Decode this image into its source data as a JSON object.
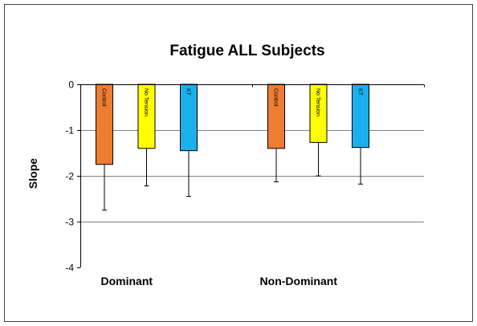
{
  "chart_data": {
    "type": "bar",
    "title": "Fatigue ALL Subjects",
    "xlabel": "",
    "ylabel": "Slope",
    "ylim": [
      -4,
      0
    ],
    "yticks": [
      "0",
      "-1",
      "-2",
      "-3",
      "-4"
    ],
    "grid": true,
    "legend": "none",
    "categories": [
      "Dominant",
      "Non-Dominant"
    ],
    "series": [
      {
        "name": "Control",
        "color": "#ED7D31",
        "values": [
          -1.75,
          -1.4
        ],
        "errors": [
          1.0,
          0.73
        ]
      },
      {
        "name": "No Tension",
        "color": "#FFFF00",
        "values": [
          -1.4,
          -1.27
        ],
        "errors": [
          0.82,
          0.73
        ]
      },
      {
        "name": "KT",
        "color": "#1AB0EE",
        "values": [
          -1.45,
          -1.38
        ],
        "errors": [
          1.0,
          0.8
        ]
      }
    ]
  }
}
